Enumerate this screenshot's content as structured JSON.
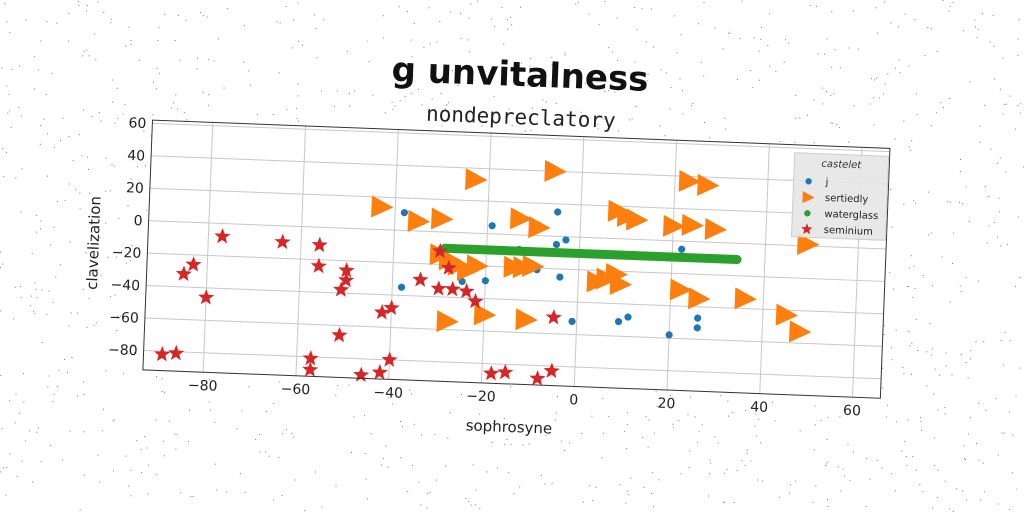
{
  "chart_data": {
    "type": "scatter",
    "suptitle": "g unvitalness",
    "title": "nondepreclatory",
    "xlabel": "sophrosyne",
    "ylabel": "clavelization",
    "xlim": [
      -93,
      66
    ],
    "ylim": [
      -92,
      62
    ],
    "xticks": [
      -80,
      -60,
      -40,
      -20,
      0,
      20,
      40,
      60
    ],
    "yticks": [
      -80,
      -60,
      -40,
      -20,
      0,
      20,
      40,
      60
    ],
    "grid": true,
    "legend": {
      "title": "castelet",
      "placement": "top-right"
    },
    "series": [
      {
        "name": "j",
        "marker": "circle",
        "color": "#1f77b4",
        "points": [
          [
            -38,
            11
          ],
          [
            -34,
            6
          ],
          [
            -30,
            -11
          ],
          [
            -19,
            5
          ],
          [
            -10,
            6
          ],
          [
            -5,
            15
          ],
          [
            -13,
            -9
          ],
          [
            -9,
            -21
          ],
          [
            -4,
            -25
          ],
          [
            -3,
            -2
          ],
          [
            -5,
            -5
          ],
          [
            -38,
            -35
          ],
          [
            -25,
            -30
          ],
          [
            -30,
            -35
          ],
          [
            -20,
            -29
          ],
          [
            -1,
            -52
          ],
          [
            9,
            -51
          ],
          [
            11,
            -48
          ],
          [
            20,
            -58
          ],
          [
            26,
            -47
          ],
          [
            26,
            -53
          ],
          [
            22,
            -5
          ]
        ]
      },
      {
        "name": "sertiedly",
        "marker": "triangle-right",
        "color": "#ff7f0e",
        "points": [
          [
            -6,
            40
          ],
          [
            -23,
            33
          ],
          [
            23,
            37
          ],
          [
            27,
            35
          ],
          [
            -43,
            14
          ],
          [
            -35,
            6
          ],
          [
            -30,
            8
          ],
          [
            -13,
            10
          ],
          [
            -9,
            5
          ],
          [
            8,
            17
          ],
          [
            10,
            14
          ],
          [
            12,
            12
          ],
          [
            20,
            9
          ],
          [
            24,
            10
          ],
          [
            29,
            8
          ],
          [
            49,
            1
          ],
          [
            -30,
            -14
          ],
          [
            -28,
            -17
          ],
          [
            -26,
            -20
          ],
          [
            -24,
            -23
          ],
          [
            -22,
            -20
          ],
          [
            -14,
            -20
          ],
          [
            -12,
            -20
          ],
          [
            -10,
            -19
          ],
          [
            4,
            -27
          ],
          [
            6,
            -25
          ],
          [
            8,
            -22
          ],
          [
            9,
            -28
          ],
          [
            22,
            -30
          ],
          [
            26,
            -35
          ],
          [
            36,
            -34
          ],
          [
            45,
            -43
          ],
          [
            48,
            -53
          ],
          [
            -20,
            -50
          ],
          [
            -11,
            -52
          ],
          [
            -28,
            -55
          ]
        ]
      },
      {
        "name": "waterglass",
        "marker": "circle",
        "color": "#2ca02c",
        "points": [
          [
            -29,
            -10
          ],
          [
            -26,
            -10
          ],
          [
            -23,
            -10
          ],
          [
            -20,
            -10
          ],
          [
            -17,
            -10
          ],
          [
            -14,
            -10
          ],
          [
            -11,
            -10
          ],
          [
            -8,
            -10
          ],
          [
            -5,
            -10
          ],
          [
            -2,
            -10
          ],
          [
            1,
            -10
          ],
          [
            4,
            -10
          ],
          [
            7,
            -10
          ],
          [
            10,
            -10
          ],
          [
            13,
            -10
          ],
          [
            16,
            -10
          ],
          [
            19,
            -10
          ],
          [
            22,
            -10
          ],
          [
            25,
            -10
          ],
          [
            28,
            -10
          ],
          [
            31,
            -10
          ],
          [
            34,
            -10
          ]
        ]
      },
      {
        "name": "seminium",
        "marker": "star",
        "color": "#d62728",
        "points": [
          [
            -77,
            -8
          ],
          [
            -64,
            -10
          ],
          [
            -56,
            -11
          ],
          [
            -83,
            -26
          ],
          [
            -85,
            -32
          ],
          [
            -80,
            -46
          ],
          [
            -56,
            -24
          ],
          [
            -50,
            -26
          ],
          [
            -50,
            -32
          ],
          [
            -51,
            -38
          ],
          [
            -30,
            -12
          ],
          [
            -28,
            -22
          ],
          [
            -34,
            -30
          ],
          [
            -30,
            -35
          ],
          [
            -27,
            -35
          ],
          [
            -24,
            -36
          ],
          [
            -22,
            -42
          ],
          [
            -40,
            -48
          ],
          [
            -42,
            -51
          ],
          [
            -5,
            -50
          ],
          [
            -51,
            -66
          ],
          [
            -57,
            -81
          ],
          [
            -57,
            -88
          ],
          [
            -40,
            -80
          ],
          [
            -42,
            -88
          ],
          [
            -46,
            -90
          ],
          [
            -18,
            -86
          ],
          [
            -15,
            -85
          ],
          [
            -8,
            -88
          ],
          [
            -5,
            -83
          ],
          [
            -89,
            -82
          ],
          [
            -86,
            -81
          ]
        ]
      }
    ]
  }
}
